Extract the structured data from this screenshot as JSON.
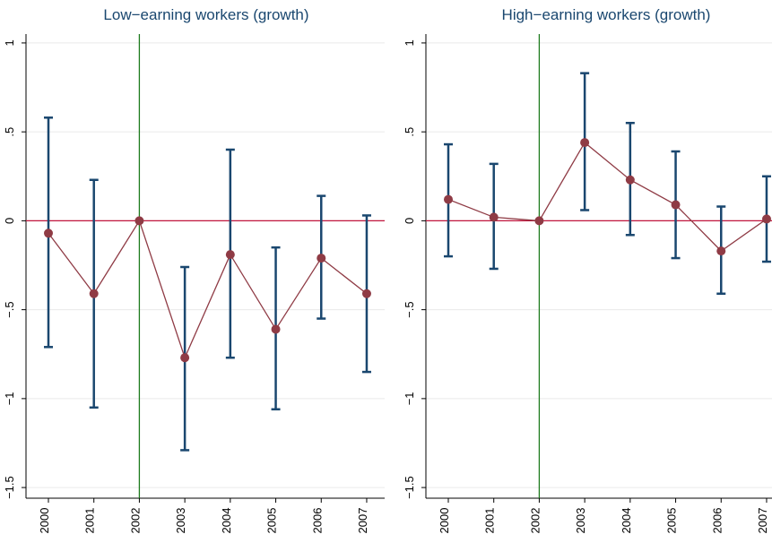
{
  "chart_data": [
    {
      "type": "line",
      "title": "Low−earning workers (growth)",
      "categories": [
        "2000",
        "2001",
        "2002",
        "2003",
        "2004",
        "2005",
        "2006",
        "2007"
      ],
      "values": [
        -0.07,
        -0.41,
        0,
        -0.77,
        -0.19,
        -0.61,
        -0.21,
        -0.41
      ],
      "ci_upper": [
        0.58,
        0.23,
        null,
        -0.26,
        0.4,
        -0.15,
        0.14,
        0.03
      ],
      "ci_lower": [
        -0.71,
        -1.05,
        null,
        -1.29,
        -0.77,
        -1.06,
        -0.55,
        -0.85
      ],
      "color": "#8f3b45",
      "ci_color": "#1a476f",
      "hline": 0,
      "hline_color": "#c0143c",
      "vline": "2002",
      "vline_color": "#1e7b1e",
      "ylim": [
        -1.56,
        1.05
      ],
      "yticks": [
        {
          "value": -1.5,
          "label": "−1.5"
        },
        {
          "value": -1,
          "label": "−1"
        },
        {
          "value": -0.5,
          "label": "−.5"
        },
        0,
        {
          "value": 0.5,
          "label": ".5"
        },
        1
      ],
      "grid": true
    },
    {
      "type": "line",
      "title": "High−earning workers (growth)",
      "categories": [
        "2000",
        "2001",
        "2002",
        "2003",
        "2004",
        "2005",
        "2006",
        "2007"
      ],
      "values": [
        0.12,
        0.02,
        0,
        0.44,
        0.23,
        0.09,
        -0.17,
        0.01
      ],
      "ci_upper": [
        0.43,
        0.32,
        null,
        0.83,
        0.55,
        0.39,
        0.08,
        0.25
      ],
      "ci_lower": [
        -0.2,
        -0.27,
        null,
        0.06,
        -0.08,
        -0.21,
        -0.41,
        -0.23
      ],
      "color": "#8f3b45",
      "ci_color": "#1a476f",
      "hline": 0,
      "hline_color": "#c0143c",
      "vline": "2002",
      "vline_color": "#1e7b1e",
      "ylim": [
        -1.56,
        1.05
      ],
      "yticks": [
        {
          "value": -1.5,
          "label": "−1.5"
        },
        {
          "value": -1,
          "label": "−1"
        },
        {
          "value": -0.5,
          "label": "−.5"
        },
        0,
        {
          "value": 0.5,
          "label": ".5"
        },
        1
      ],
      "grid": true
    }
  ]
}
